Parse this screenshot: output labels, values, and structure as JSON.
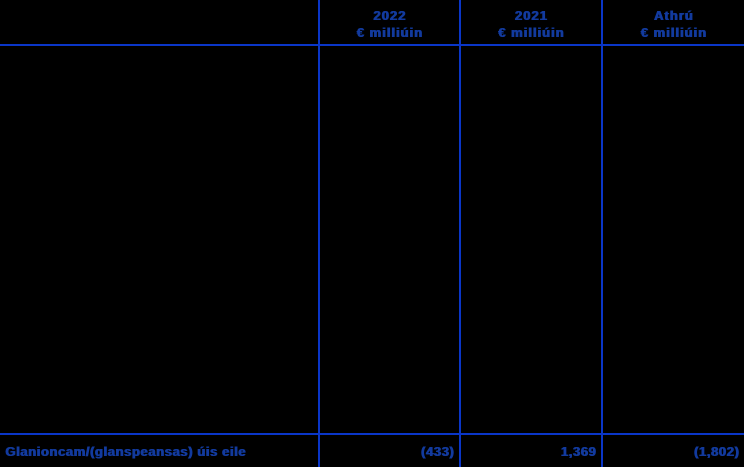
{
  "table": {
    "header": {
      "columns": [
        {
          "year": "2022",
          "unit": "€ milliúin"
        },
        {
          "year": "2021",
          "unit": "€ milliúin"
        },
        {
          "year": "Athrú",
          "unit": "€ milliúin"
        }
      ]
    },
    "total_row": {
      "label": "Glanioncam/(glanspeansas) úis eile",
      "values": [
        "(433)",
        "1,369",
        "(1,802)"
      ]
    }
  },
  "colors": {
    "background": "#000000",
    "grid_line": "#0a36c8",
    "text": "#123a9e"
  }
}
